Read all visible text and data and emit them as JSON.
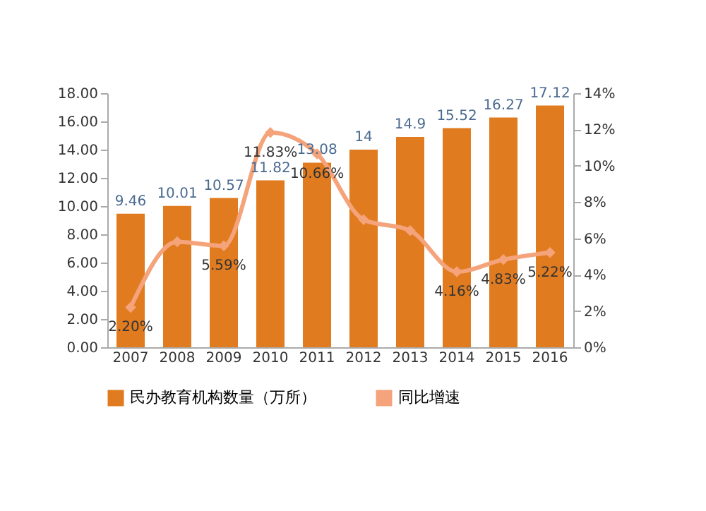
{
  "chart_data": {
    "type": "bar",
    "categories": [
      "2007",
      "2008",
      "2009",
      "2010",
      "2011",
      "2012",
      "2013",
      "2014",
      "2015",
      "2016"
    ],
    "series": [
      {
        "name": "民办教育机构数量（万所）",
        "color": "#e07b20",
        "values": [
          9.46,
          10.01,
          10.57,
          11.82,
          13.08,
          14,
          14.9,
          15.52,
          16.27,
          17.12
        ],
        "value_labels": [
          "9.46",
          "10.01",
          "10.57",
          "11.82",
          "13.08",
          "14",
          "14.9",
          "15.52",
          "16.27",
          "17.12"
        ]
      },
      {
        "name": "同比增速",
        "type": "line",
        "axis": "y2",
        "color": "#f4a37a",
        "values": [
          2.2,
          5.81,
          5.59,
          11.83,
          10.66,
          7.03,
          6.43,
          4.16,
          4.83,
          5.22
        ],
        "value_labels": [
          "2.20%",
          null,
          "5.59%",
          "11.83%",
          "10.66%",
          null,
          null,
          "4.16%",
          "4.83%",
          "5.22%"
        ]
      }
    ],
    "ylim": [
      0,
      18
    ],
    "yticks": [
      {
        "value": 0,
        "label": "0.00"
      },
      {
        "value": 2,
        "label": "2.00"
      },
      {
        "value": 4,
        "label": "4.00"
      },
      {
        "value": 6,
        "label": "6.00"
      },
      {
        "value": 8,
        "label": "8.00"
      },
      {
        "value": 10,
        "label": "10.00"
      },
      {
        "value": 12,
        "label": "12.00"
      },
      {
        "value": 14,
        "label": "14.00"
      },
      {
        "value": 16,
        "label": "16.00"
      },
      {
        "value": 18,
        "label": "18.00"
      }
    ],
    "y2lim": [
      0,
      14
    ],
    "y2ticks": [
      {
        "value": 0,
        "label": "0%"
      },
      {
        "value": 2,
        "label": "2%"
      },
      {
        "value": 4,
        "label": "4%"
      },
      {
        "value": 6,
        "label": "6%"
      },
      {
        "value": 8,
        "label": "8%"
      },
      {
        "value": 10,
        "label": "10%"
      },
      {
        "value": 12,
        "label": "12%"
      },
      {
        "value": 14,
        "label": "14%"
      }
    ],
    "grid": false,
    "legend": "bottom",
    "marker": "diamond",
    "line_style": "solid"
  }
}
